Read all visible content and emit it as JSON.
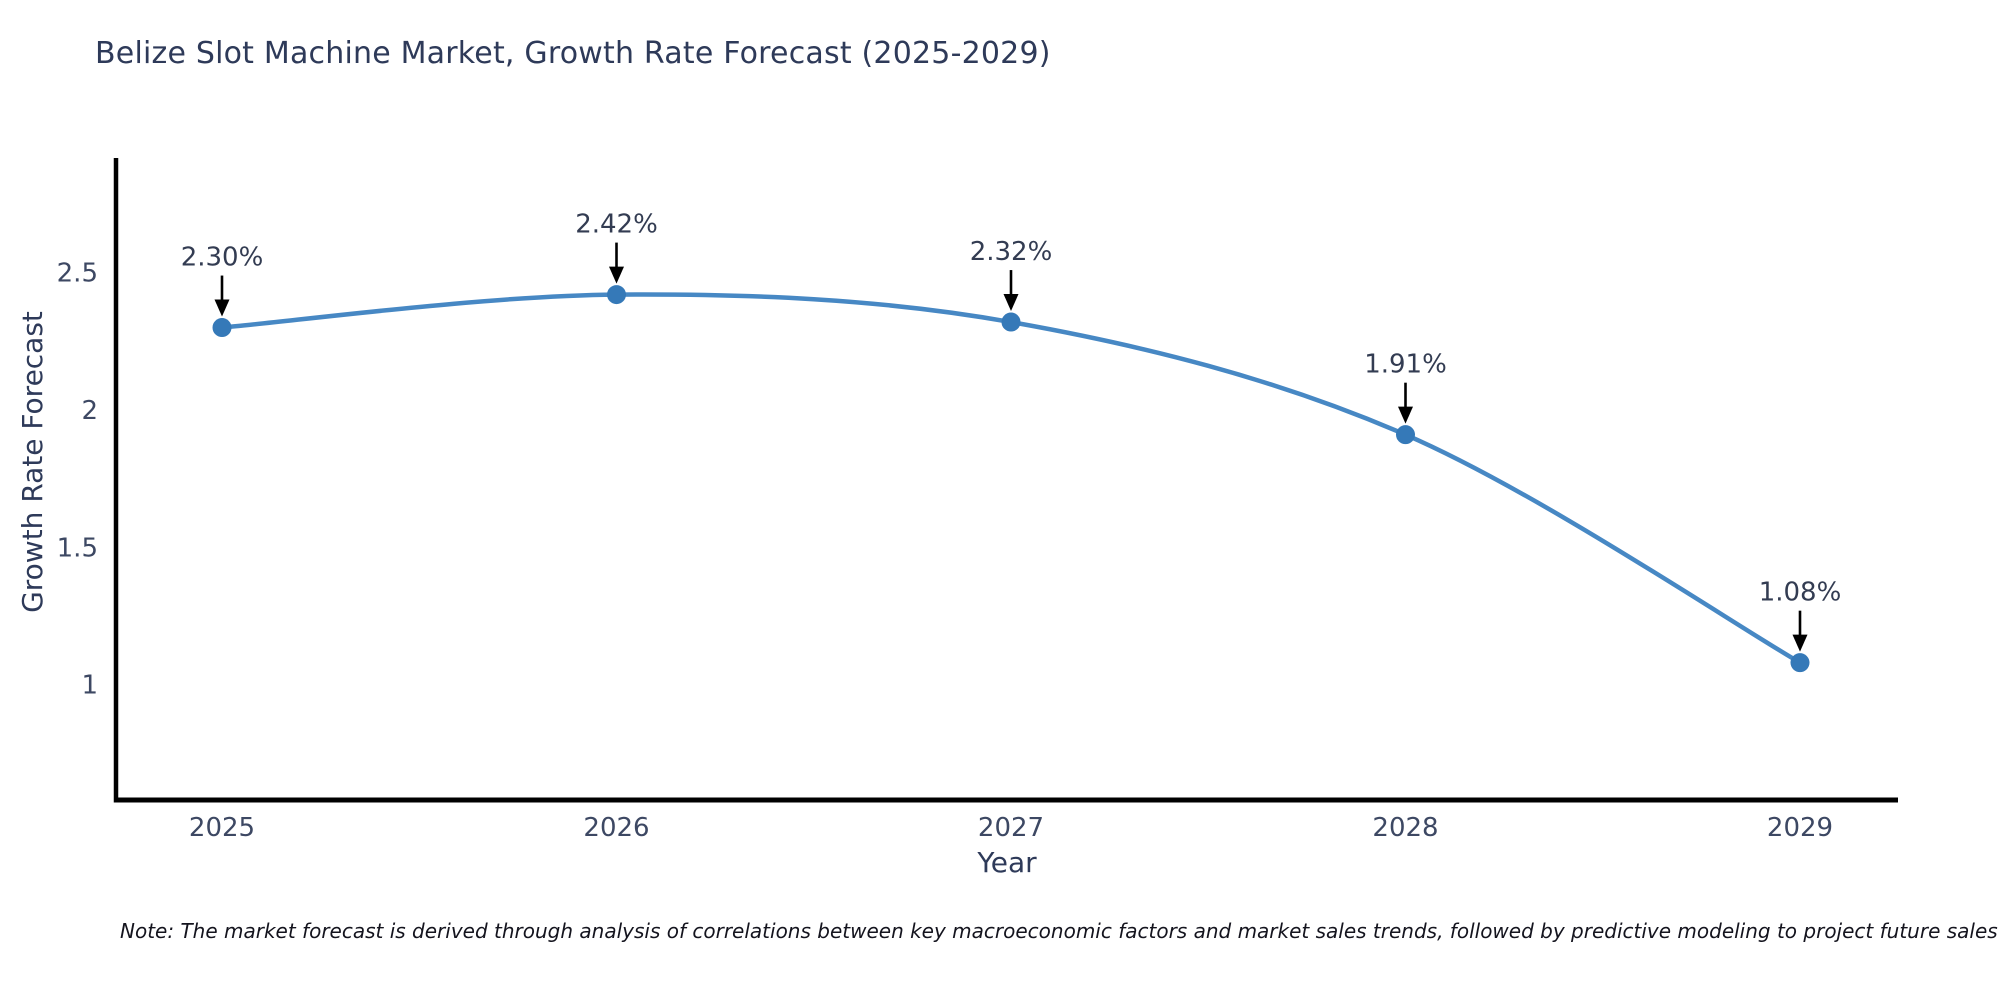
{
  "chart": {
    "note": "Note: The market forecast is derived through analysis of correlations between key macroeconomic factors and market sales trends, followed by predictive modeling to project future sales"
  },
  "chart_data": {
    "type": "line",
    "title": "Belize Slot Machine Market, Growth Rate Forecast (2025-2029)",
    "categories": [
      "2025",
      "2026",
      "2027",
      "2028",
      "2029"
    ],
    "values": [
      2.3,
      2.42,
      2.32,
      1.91,
      1.08
    ],
    "point_labels": [
      "2.30%",
      "2.42%",
      "2.32%",
      "1.91%",
      "1.08%"
    ],
    "xlabel": "Year",
    "ylabel": "Growth Rate Forecast",
    "y_ticks": [
      2.5,
      2,
      1.5,
      1
    ],
    "y_tick_labels": [
      "2.5",
      "2",
      "1.5",
      "1"
    ],
    "ylim": [
      0.58,
      2.91
    ],
    "grid": false,
    "legend": "none",
    "line_shape": "spline",
    "colors": {
      "line": "#4788c4",
      "marker": "#3579b8",
      "axis": "#000000",
      "annotation_arrow": "#000000",
      "annotation_text": "#333c52",
      "tick_text": "#3d4863",
      "title_text": "#2e3a59",
      "background": "#ffffff"
    }
  }
}
